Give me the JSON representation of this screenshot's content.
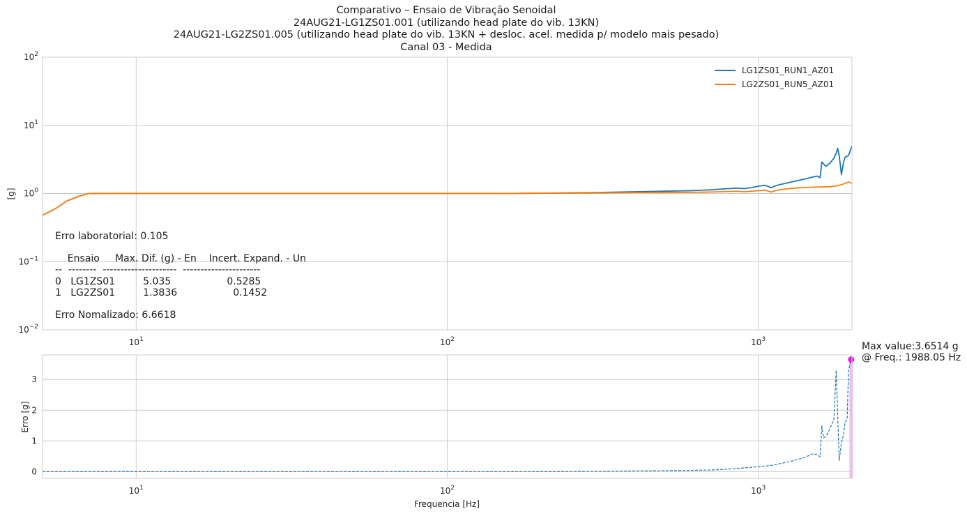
{
  "title_lines": [
    "Comparativo – Ensaio de Vibração Senoidal",
    "24AUG21-LG1ZS01.001 (utilizando head plate do vib. 13KN)",
    "24AUG21-LG2ZS01.005 (utilizando head plate do vib. 13KN + desloc. acel. medida p/ modelo mais pesado)",
    "Canal 03 - Medida"
  ],
  "colors": {
    "series1": "#1f77b4",
    "series2": "#ff7f0e",
    "error": "#1f77b4",
    "marker": "#e81ce8",
    "marker_band": "#f0b0f0",
    "grid": "#cccccc",
    "frame": "#cccccc"
  },
  "annotation": {
    "lab_error": "Erro laboratorial: 0.105",
    "table_header": "    Ensaio     Max. Dif. (g) - En    Incert. Expand. - Un",
    "table_rule": "--  --------  ---------------------  ----------------------",
    "table_rows": [
      "0   LG1ZS01         5.035                  0.5285",
      "1   LG2ZS01         1.3836                  0.1452"
    ],
    "normalized_error": "Erro Nomalizado: 6.6618"
  },
  "max_annotation": {
    "line1": "Max value:3.6514 g",
    "line2": "@ Freq.: 1988.05 Hz"
  },
  "chart_data": [
    {
      "type": "line",
      "xscale": "log",
      "yscale": "log",
      "xlim": [
        5,
        2000
      ],
      "ylim": [
        0.01,
        100
      ],
      "ylabel": "[g]",
      "xlabel": "",
      "xticks": [
        {
          "base": "10",
          "exp": "1"
        },
        {
          "base": "10",
          "exp": "2"
        },
        {
          "base": "10",
          "exp": "3"
        }
      ],
      "yticks": [
        {
          "base": "10",
          "exp": "−2"
        },
        {
          "base": "10",
          "exp": "−1"
        },
        {
          "base": "10",
          "exp": "0"
        },
        {
          "base": "10",
          "exp": "1"
        },
        {
          "base": "10",
          "exp": "2"
        }
      ],
      "grid": true,
      "legend_position": "top-right",
      "series": [
        {
          "name": "LG1ZS01_RUN1_AZ01",
          "x": [
            5,
            5.5,
            6,
            6.5,
            7,
            8,
            9,
            10,
            20,
            50,
            100,
            150,
            200,
            250,
            300,
            400,
            500,
            600,
            700,
            800,
            850,
            900,
            950,
            1000,
            1050,
            1100,
            1150,
            1200,
            1300,
            1400,
            1500,
            1550,
            1580,
            1600,
            1650,
            1700,
            1750,
            1780,
            1800,
            1820,
            1850,
            1880,
            1900,
            1950,
            2000
          ],
          "y": [
            0.48,
            0.6,
            0.78,
            0.9,
            1.0,
            1.0,
            1.0,
            1.0,
            1.0,
            1.0,
            1.0,
            1.0,
            1.01,
            1.02,
            1.03,
            1.06,
            1.08,
            1.1,
            1.13,
            1.18,
            1.2,
            1.18,
            1.22,
            1.28,
            1.32,
            1.22,
            1.32,
            1.38,
            1.5,
            1.62,
            1.75,
            1.8,
            1.7,
            2.9,
            2.5,
            2.8,
            3.3,
            3.9,
            4.6,
            3.6,
            1.9,
            2.9,
            3.4,
            3.6,
            5.0
          ]
        },
        {
          "name": "LG2ZS01_RUN5_AZ01",
          "x": [
            5,
            5.5,
            6,
            6.5,
            7,
            8,
            9,
            10,
            20,
            50,
            100,
            150,
            200,
            250,
            300,
            400,
            500,
            600,
            700,
            800,
            850,
            900,
            950,
            1000,
            1050,
            1100,
            1150,
            1200,
            1300,
            1400,
            1500,
            1600,
            1700,
            1800,
            1900,
            1950,
            2000
          ],
          "y": [
            0.48,
            0.6,
            0.78,
            0.9,
            1.0,
            1.0,
            1.0,
            1.0,
            1.0,
            1.0,
            1.0,
            1.0,
            1.01,
            1.01,
            1.02,
            1.03,
            1.03,
            1.04,
            1.05,
            1.07,
            1.08,
            1.06,
            1.08,
            1.1,
            1.12,
            1.05,
            1.12,
            1.15,
            1.2,
            1.22,
            1.24,
            1.25,
            1.26,
            1.3,
            1.4,
            1.48,
            1.4
          ]
        }
      ]
    },
    {
      "type": "line",
      "xscale": "log",
      "xlim": [
        5,
        2000
      ],
      "ylim": [
        -0.22,
        3.8
      ],
      "xlabel": "Frequencia [Hz]",
      "ylabel": "Erro [g]",
      "xticks": [
        {
          "base": "10",
          "exp": "1"
        },
        {
          "base": "10",
          "exp": "2"
        },
        {
          "base": "10",
          "exp": "3"
        }
      ],
      "yticks": [
        0,
        1,
        2,
        3
      ],
      "grid": true,
      "linestyle": "dashed",
      "series": [
        {
          "x": [
            5,
            5.5,
            6,
            6.5,
            7,
            8,
            9,
            10,
            20,
            50,
            100,
            200,
            300,
            400,
            500,
            600,
            700,
            800,
            850,
            900,
            950,
            1000,
            1050,
            1100,
            1150,
            1200,
            1300,
            1400,
            1500,
            1550,
            1580,
            1600,
            1620,
            1650,
            1700,
            1750,
            1780,
            1800,
            1820,
            1850,
            1880,
            1900,
            1930,
            1950,
            1988.05
          ],
          "y": [
            0.0,
            0.0,
            0.0,
            0.0,
            0.0,
            0.0,
            0.01,
            0.0,
            0.0,
            0.0,
            0.0,
            0.0,
            0.01,
            0.02,
            0.03,
            0.04,
            0.05,
            0.08,
            0.1,
            0.12,
            0.14,
            0.16,
            0.18,
            0.2,
            0.24,
            0.28,
            0.36,
            0.45,
            0.58,
            0.55,
            0.48,
            1.5,
            1.1,
            1.15,
            1.4,
            1.7,
            3.3,
            1.8,
            0.35,
            0.95,
            1.2,
            1.6,
            1.7,
            3.3,
            3.6514
          ]
        }
      ],
      "max_point": {
        "x": 1988.05,
        "y": 3.6514
      }
    }
  ]
}
